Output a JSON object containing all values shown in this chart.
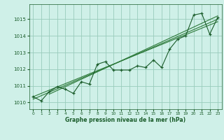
{
  "bg_color": "#cff0e8",
  "grid_color": "#99ccbb",
  "line_color": "#1a5c2a",
  "line_color2": "#2d7a3a",
  "xlim": [
    -0.5,
    23.5
  ],
  "ylim": [
    1009.6,
    1015.9
  ],
  "yticks": [
    1010,
    1011,
    1012,
    1013,
    1014,
    1015
  ],
  "xticks": [
    0,
    1,
    2,
    3,
    4,
    5,
    6,
    7,
    8,
    9,
    10,
    11,
    12,
    13,
    14,
    15,
    16,
    17,
    18,
    19,
    20,
    21,
    22,
    23
  ],
  "xlabel": "Graphe pression niveau de la mer (hPa)",
  "data_main": [
    [
      0,
      1010.35
    ],
    [
      1,
      1010.1
    ],
    [
      2,
      1010.65
    ],
    [
      3,
      1010.95
    ],
    [
      4,
      1010.8
    ],
    [
      5,
      1010.55
    ],
    [
      6,
      1011.25
    ],
    [
      7,
      1011.1
    ],
    [
      8,
      1012.3
    ],
    [
      9,
      1012.45
    ],
    [
      10,
      1011.95
    ],
    [
      11,
      1011.95
    ],
    [
      12,
      1011.95
    ],
    [
      13,
      1012.2
    ],
    [
      14,
      1012.1
    ],
    [
      15,
      1012.55
    ],
    [
      16,
      1012.1
    ],
    [
      17,
      1013.2
    ],
    [
      18,
      1013.8
    ],
    [
      19,
      1014.0
    ],
    [
      20,
      1015.25
    ],
    [
      21,
      1015.35
    ],
    [
      22,
      1014.1
    ],
    [
      23,
      1015.1
    ]
  ],
  "trend_line1": [
    [
      0,
      1010.2
    ],
    [
      23,
      1015.0
    ]
  ],
  "trend_line2": [
    [
      0,
      1010.35
    ],
    [
      23,
      1014.85
    ]
  ],
  "trend_line3": [
    [
      2,
      1010.5
    ],
    [
      23,
      1015.2
    ]
  ]
}
